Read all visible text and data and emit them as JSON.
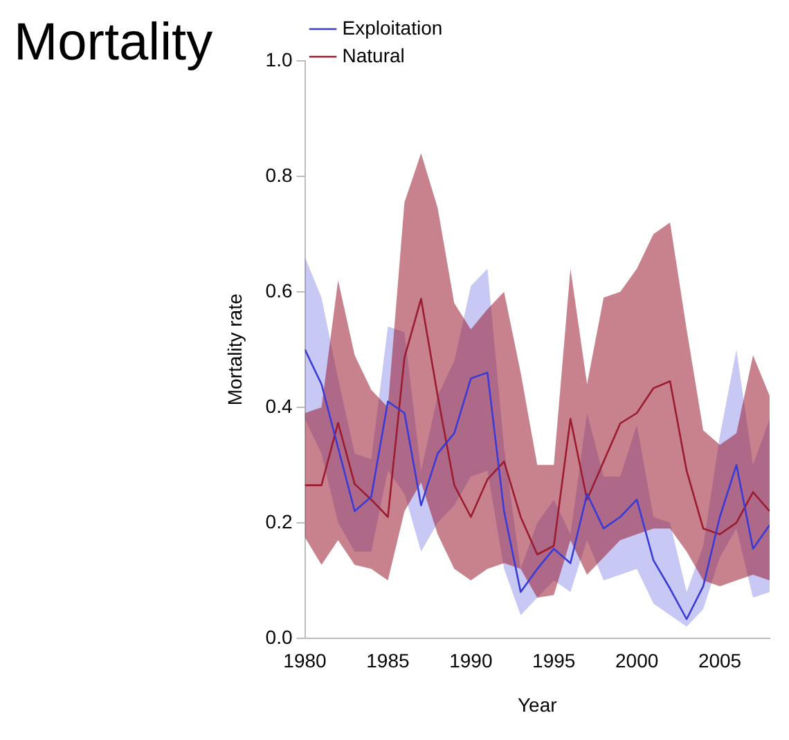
{
  "chart_data": {
    "type": "line",
    "title": "Mortality",
    "xlabel": "Year",
    "ylabel": "Mortality rate",
    "x": [
      1980,
      1981,
      1982,
      1983,
      1984,
      1985,
      1986,
      1987,
      1988,
      1989,
      1990,
      1991,
      1992,
      1993,
      1994,
      1995,
      1996,
      1997,
      1998,
      1999,
      2000,
      2001,
      2002,
      2003,
      2004,
      2005,
      2006,
      2007,
      2008
    ],
    "series": [
      {
        "name": "Exploitation",
        "color": "#3a3ad6",
        "values": [
          0.5,
          0.44,
          0.33,
          0.22,
          0.245,
          0.41,
          0.39,
          0.23,
          0.32,
          0.355,
          0.45,
          0.46,
          0.22,
          0.08,
          0.12,
          0.155,
          0.13,
          0.25,
          0.19,
          0.21,
          0.24,
          0.135,
          0.086,
          0.033,
          0.09,
          0.21,
          0.3,
          0.155,
          0.196
        ],
        "lower": [
          0.38,
          0.32,
          0.2,
          0.15,
          0.15,
          0.29,
          0.25,
          0.15,
          0.2,
          0.23,
          0.28,
          0.29,
          0.12,
          0.04,
          0.07,
          0.1,
          0.08,
          0.17,
          0.1,
          0.11,
          0.12,
          0.06,
          0.04,
          0.02,
          0.05,
          0.14,
          0.19,
          0.07,
          0.08
        ],
        "upper": [
          0.66,
          0.59,
          0.45,
          0.32,
          0.31,
          0.54,
          0.53,
          0.29,
          0.42,
          0.48,
          0.61,
          0.64,
          0.33,
          0.12,
          0.2,
          0.24,
          0.18,
          0.39,
          0.28,
          0.28,
          0.37,
          0.21,
          0.2,
          0.08,
          0.16,
          0.35,
          0.5,
          0.3,
          0.38
        ]
      },
      {
        "name": "Natural",
        "color": "#9b1b30",
        "values": [
          0.265,
          0.265,
          0.373,
          0.267,
          0.24,
          0.21,
          0.486,
          0.588,
          0.42,
          0.265,
          0.21,
          0.275,
          0.306,
          0.21,
          0.145,
          0.16,
          0.38,
          0.24,
          0.306,
          0.372,
          0.39,
          0.433,
          0.445,
          0.29,
          0.19,
          0.18,
          0.2,
          0.253,
          0.22
        ],
        "lower": [
          0.175,
          0.127,
          0.17,
          0.127,
          0.12,
          0.1,
          0.22,
          0.27,
          0.18,
          0.12,
          0.1,
          0.12,
          0.13,
          0.12,
          0.07,
          0.075,
          0.17,
          0.11,
          0.14,
          0.17,
          0.18,
          0.19,
          0.19,
          0.15,
          0.1,
          0.09,
          0.1,
          0.11,
          0.1
        ],
        "upper": [
          0.39,
          0.4,
          0.62,
          0.49,
          0.43,
          0.4,
          0.755,
          0.84,
          0.745,
          0.58,
          0.535,
          0.57,
          0.6,
          0.46,
          0.3,
          0.3,
          0.64,
          0.44,
          0.59,
          0.6,
          0.64,
          0.7,
          0.72,
          0.535,
          0.36,
          0.335,
          0.355,
          0.49,
          0.42
        ]
      }
    ],
    "xlim": [
      1980,
      2008
    ],
    "xticks": [
      1980,
      1985,
      1990,
      1995,
      2000,
      2005
    ],
    "ylim": [
      0,
      1
    ],
    "yticks": [
      {
        "value": 0,
        "label": "0.0"
      },
      0.2,
      0.4,
      0.6,
      0.8,
      {
        "value": 1,
        "label": "1.0"
      }
    ],
    "legend": "top left",
    "grid": false,
    "marker": "none",
    "line_style": "solid"
  }
}
